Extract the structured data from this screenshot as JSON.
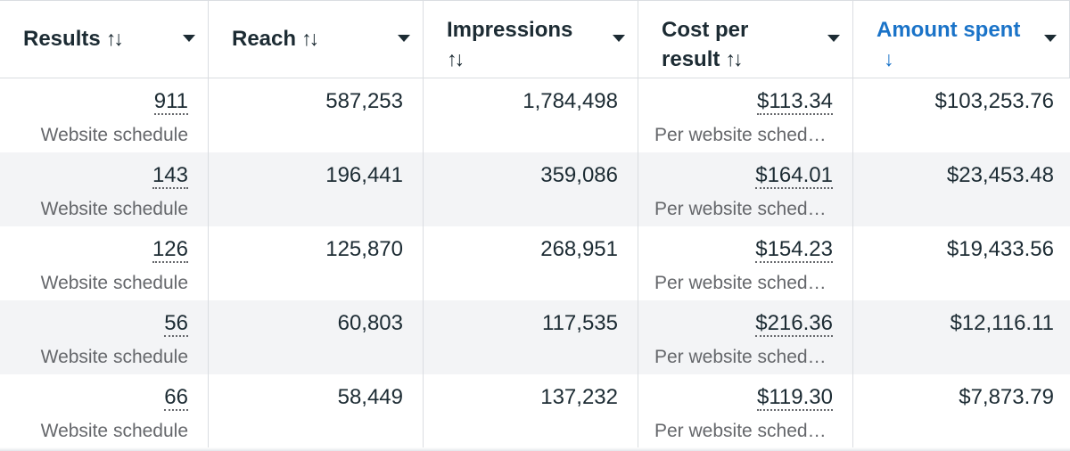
{
  "headers": [
    {
      "label": "Results",
      "sort": "↑↓"
    },
    {
      "label": "Reach",
      "sort": "↑↓"
    },
    {
      "label_line1": "Impressions",
      "sort": "↑↓"
    },
    {
      "label_line1": "Cost per",
      "label_line2": "result",
      "sort": "↑↓"
    },
    {
      "label_line1": "Amount spent",
      "sort": "↓"
    }
  ],
  "rows": [
    {
      "results": "911",
      "results_sub": "Website schedule",
      "reach": "587,253",
      "impressions": "1,784,498",
      "cost": "$113.34",
      "cost_sub": "Per website sched…",
      "spent": "$103,253.76"
    },
    {
      "results": "143",
      "results_sub": "Website schedule",
      "reach": "196,441",
      "impressions": "359,086",
      "cost": "$164.01",
      "cost_sub": "Per website sched…",
      "spent": "$23,453.48"
    },
    {
      "results": "126",
      "results_sub": "Website schedule",
      "reach": "125,870",
      "impressions": "268,951",
      "cost": "$154.23",
      "cost_sub": "Per website sched…",
      "spent": "$19,433.56"
    },
    {
      "results": "56",
      "results_sub": "Website schedule",
      "reach": "60,803",
      "impressions": "117,535",
      "cost": "$216.36",
      "cost_sub": "Per website sched…",
      "spent": "$12,116.11"
    },
    {
      "results": "66",
      "results_sub": "Website schedule",
      "reach": "58,449",
      "impressions": "137,232",
      "cost": "$119.30",
      "cost_sub": "Per website sched…",
      "spent": "$7,873.79"
    }
  ],
  "colors": {
    "active_header": "#1a73c8",
    "text": "#1c2b33",
    "muted": "#65676b",
    "alt_row": "#f3f4f6",
    "border": "#dadde1"
  }
}
